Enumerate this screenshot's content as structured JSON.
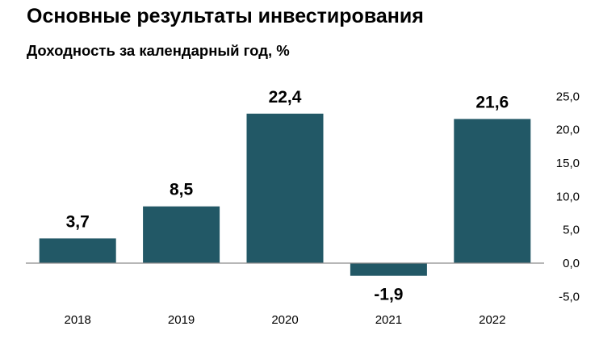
{
  "title": "Основные результаты инвестирования",
  "subtitle": "Доходность за календарный год, %",
  "colors": {
    "bar": "#225866",
    "axis": "#8c8c8c"
  },
  "chart_data": {
    "type": "bar",
    "categories": [
      "2018",
      "2019",
      "2020",
      "2021",
      "2022"
    ],
    "values": [
      3.7,
      8.5,
      22.4,
      -1.9,
      21.6
    ],
    "value_labels": [
      "3,7",
      "8,5",
      "22,4",
      "-1,9",
      "21,6"
    ],
    "ylim": [
      -5,
      25
    ],
    "yticks": [
      25,
      20,
      15,
      10,
      5,
      0,
      -5
    ],
    "ytick_labels": [
      "25,0",
      "20,0",
      "15,0",
      "10,0",
      "5,0",
      "0,0",
      "-5,0"
    ],
    "y_axis_position": "right",
    "grid": false,
    "legend": "none"
  }
}
